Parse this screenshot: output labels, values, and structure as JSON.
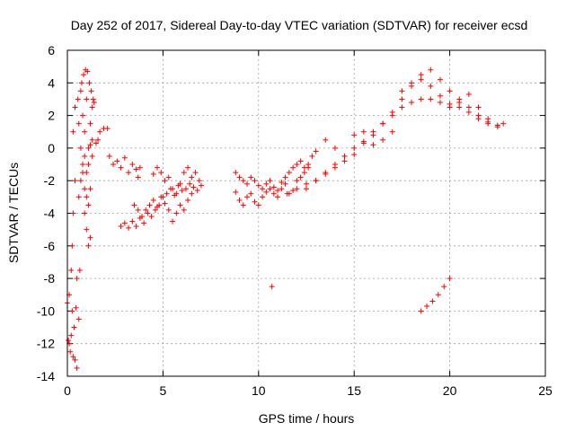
{
  "chart_data": {
    "type": "scatter",
    "title": "Day 252 of 2017, Sidereal Day-to-day VTEC variation (SDTVAR) for receiver ecsd",
    "xlabel": "GPS time / hours",
    "ylabel": "SDTVAR / TECUs",
    "xlim": [
      0,
      25
    ],
    "ylim": [
      -14,
      6
    ],
    "xticks": [
      0,
      5,
      10,
      15,
      20,
      25
    ],
    "yticks": [
      -14,
      -12,
      -10,
      -8,
      -6,
      -4,
      -2,
      0,
      2,
      4,
      6
    ],
    "grid": true,
    "marker": "+",
    "color": "#ff0000",
    "series": [
      {
        "name": "SDTVAR",
        "x": [
          0.0,
          0.05,
          0.1,
          0.1,
          0.15,
          0.2,
          0.2,
          0.25,
          0.25,
          0.3,
          0.3,
          0.3,
          0.35,
          0.4,
          0.4,
          0.4,
          0.45,
          0.5,
          0.5,
          0.55,
          0.6,
          0.6,
          0.6,
          0.65,
          0.7,
          0.7,
          0.75,
          0.8,
          0.8,
          0.85,
          0.9,
          0.9,
          0.95,
          1.0,
          1.0,
          1.0,
          1.05,
          1.1,
          1.1,
          1.15,
          1.2,
          1.2,
          1.25,
          1.3,
          1.3,
          1.35,
          1.4,
          1.5,
          1.6,
          1.7,
          1.9,
          2.1,
          0.9,
          1.0,
          1.1,
          1.2,
          0.7,
          0.8,
          0.9,
          1.1,
          1.2,
          1.3,
          2.2,
          2.4,
          2.6,
          2.8,
          3.0,
          3.2,
          3.4,
          3.6,
          3.7,
          3.8,
          2.8,
          3.0,
          3.2,
          3.4,
          3.6,
          3.8,
          4.0,
          4.2,
          4.4,
          4.6,
          4.8,
          5.0,
          5.2,
          5.4,
          5.6,
          5.8,
          6.0,
          6.2,
          6.4,
          6.6,
          6.8,
          7.0,
          4.5,
          4.7,
          4.9,
          5.1,
          5.3,
          5.5,
          5.7,
          5.9,
          6.1,
          6.3,
          6.5,
          6.7,
          6.9,
          3.5,
          3.7,
          3.9,
          4.1,
          4.3,
          4.5,
          4.7,
          4.9,
          5.1,
          5.3,
          5.5,
          5.7,
          5.9,
          6.1,
          6.3,
          6.5,
          8.8,
          9.0,
          9.2,
          9.4,
          9.6,
          9.8,
          10.0,
          10.2,
          10.4,
          10.6,
          10.8,
          11.0,
          11.2,
          11.4,
          11.6,
          11.8,
          12.0,
          12.2,
          12.4,
          12.6,
          12.8,
          13.0,
          8.8,
          9.0,
          9.2,
          9.4,
          9.6,
          9.8,
          10.0,
          10.2,
          10.4,
          10.6,
          10.8,
          11.0,
          11.2,
          11.4,
          11.6,
          11.8,
          12.0,
          12.2,
          12.4,
          12.6,
          10.7,
          11.5,
          12.0,
          12.5,
          13.0,
          13.5,
          14.0,
          14.5,
          15.0,
          15.5,
          16.0,
          16.5,
          17.0,
          17.5,
          18.0,
          18.5,
          19.0,
          19.5,
          20.0,
          20.5,
          21.0,
          21.5,
          22.0,
          22.5,
          22.8,
          12.5,
          13.0,
          13.5,
          14.0,
          14.5,
          15.0,
          15.5,
          16.0,
          16.5,
          17.0,
          17.5,
          18.0,
          18.5,
          19.0,
          19.5,
          20.0,
          20.5,
          21.0,
          21.5,
          22.0,
          22.5,
          13.5,
          14.0,
          14.5,
          15.0,
          15.5,
          16.0,
          16.5,
          17.0,
          17.5,
          18.0,
          18.5,
          19.0,
          19.5,
          20.0,
          20.5,
          21.0,
          21.5,
          22.0,
          18.5,
          18.8,
          19.1,
          19.4,
          19.7,
          20.0
        ],
        "y": [
          -9.5,
          -11.8,
          -12.0,
          -9.0,
          -12.5,
          -11.5,
          -7.5,
          -10.0,
          -6.0,
          -12.8,
          -4.0,
          1.0,
          -11.0,
          -13.0,
          2.5,
          -2.0,
          -9.8,
          -13.5,
          -8.0,
          3.0,
          -10.5,
          1.5,
          -3.0,
          -7.5,
          3.5,
          0.0,
          4.0,
          -1.0,
          2.0,
          4.5,
          -2.5,
          1.0,
          4.8,
          -5.0,
          -1.5,
          3.0,
          4.7,
          -6.0,
          0.0,
          4.0,
          -5.5,
          1.5,
          3.5,
          2.5,
          0.5,
          3.0,
          2.8,
          0.3,
          0.5,
          1.0,
          1.2,
          1.2,
          -4.0,
          -3.0,
          -3.5,
          -2.5,
          -2.0,
          -1.5,
          -0.5,
          -1.0,
          0.2,
          -0.5,
          -0.5,
          -1.0,
          -0.8,
          -1.2,
          -0.6,
          -1.5,
          -1.0,
          -1.3,
          -1.8,
          -1.2,
          -4.8,
          -4.6,
          -4.9,
          -4.5,
          -4.8,
          -4.3,
          -4.6,
          -4.0,
          -4.2,
          -3.8,
          -3.5,
          -3.0,
          -2.8,
          -2.5,
          -2.9,
          -2.3,
          -2.6,
          -2.5,
          -2.2,
          -2.4,
          -2.6,
          -2.3,
          -1.6,
          -1.2,
          -1.5,
          -2.0,
          -1.8,
          -2.5,
          -2.8,
          -2.2,
          -1.5,
          -1.2,
          -1.8,
          -1.5,
          -2.0,
          -3.5,
          -3.8,
          -4.2,
          -3.8,
          -3.5,
          -3.2,
          -3.6,
          -3.0,
          -3.4,
          -3.8,
          -4.5,
          -4.0,
          -3.5,
          -3.8,
          -3.2,
          -2.8,
          -1.5,
          -1.8,
          -2.0,
          -2.2,
          -1.8,
          -2.0,
          -2.3,
          -2.5,
          -2.2,
          -2.0,
          -2.4,
          -2.6,
          -2.1,
          -1.8,
          -1.5,
          -1.2,
          -1.0,
          -0.8,
          -1.2,
          -1.0,
          -0.5,
          -0.2,
          -2.7,
          -3.2,
          -3.5,
          -3.0,
          -2.8,
          -3.3,
          -3.5,
          -3.0,
          -2.7,
          -2.5,
          -2.8,
          -3.0,
          -2.5,
          -2.2,
          -2.8,
          -2.6,
          -2.0,
          -1.8,
          -1.5,
          -1.2,
          -8.5,
          -2.8,
          -2.5,
          -2.2,
          -2.0,
          -1.5,
          -1.0,
          -0.5,
          0.0,
          0.4,
          1.0,
          1.5,
          2.0,
          2.5,
          2.8,
          3.0,
          3.0,
          2.8,
          2.7,
          2.5,
          2.2,
          1.8,
          1.5,
          1.3,
          1.5,
          -2.5,
          -2.0,
          -1.6,
          -1.2,
          -0.8,
          -0.4,
          0.3,
          0.8,
          1.5,
          2.2,
          3.0,
          3.8,
          4.5,
          4.8,
          4.2,
          3.5,
          3.0,
          2.5,
          2.0,
          1.6,
          1.4,
          0.5,
          0.0,
          -0.5,
          0.8,
          1.0,
          0.2,
          0.5,
          1.0,
          3.5,
          4.0,
          4.2,
          3.8,
          3.2,
          2.5,
          2.8,
          3.3,
          2.5,
          1.8,
          -10.0,
          -9.7,
          -9.4,
          -9.0,
          -8.5,
          -8.0
        ]
      }
    ]
  }
}
